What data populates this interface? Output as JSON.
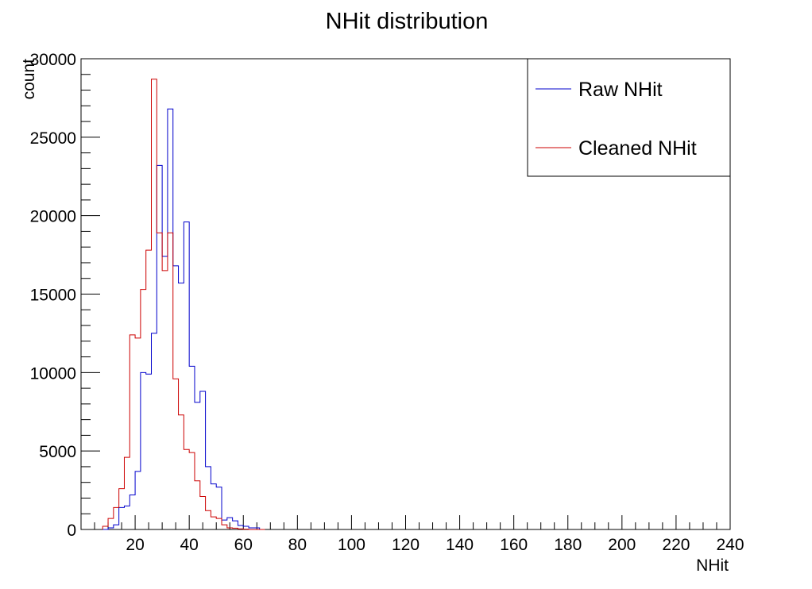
{
  "chart_data": {
    "type": "histogram-step",
    "title": "NHit distribution",
    "xlabel": "NHit",
    "ylabel": "count",
    "xlim": [
      0,
      240
    ],
    "ylim": [
      0,
      30000
    ],
    "x_ticks": [
      20,
      40,
      60,
      80,
      100,
      120,
      140,
      160,
      180,
      200,
      220,
      240
    ],
    "y_ticks": [
      0,
      5000,
      10000,
      15000,
      20000,
      25000,
      30000
    ],
    "legend_position": "top-right",
    "bin_width": 2,
    "series": [
      {
        "name": "Raw NHit",
        "color": "#0000cc",
        "bins_start": 8,
        "values": [
          0,
          100,
          300,
          1400,
          1500,
          2200,
          3700,
          10000,
          9900,
          12500,
          23200,
          17400,
          26800,
          16800,
          15700,
          19600,
          10400,
          8100,
          8800,
          4000,
          2900,
          2700,
          600,
          750,
          550,
          250,
          200,
          100,
          100,
          0
        ]
      },
      {
        "name": "Cleaned NHit",
        "color": "#cc0000",
        "bins_start": 8,
        "values": [
          200,
          700,
          1400,
          2600,
          4600,
          12400,
          12200,
          15300,
          17800,
          28700,
          18900,
          16500,
          18900,
          9600,
          7300,
          5100,
          4900,
          3100,
          2100,
          1200,
          800,
          700,
          300,
          100,
          80,
          40,
          20,
          0,
          0,
          0
        ]
      }
    ]
  }
}
